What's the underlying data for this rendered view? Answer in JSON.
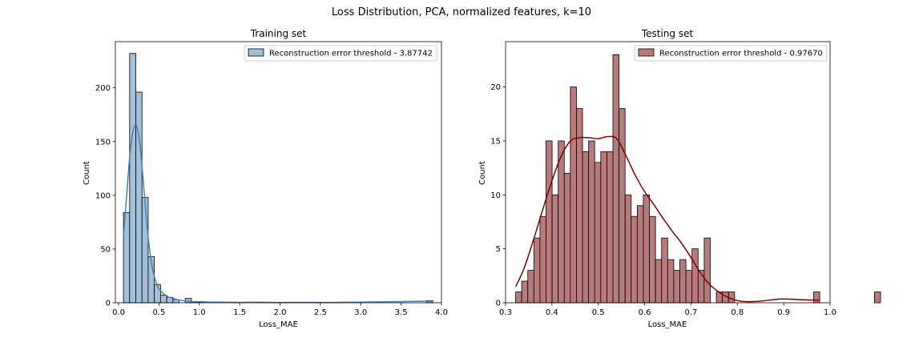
{
  "figure": {
    "title": "Loss Distribution, PCA, normalized features, k=10"
  },
  "chart_data": [
    {
      "type": "bar",
      "subtype": "histogram",
      "title": "Training set",
      "xlabel": "Loss_MAE",
      "ylabel": "Count",
      "xlim": [
        -0.04,
        4.0
      ],
      "ylim": [
        0,
        243
      ],
      "xticks": [
        "0.0",
        "0.5",
        "1.0",
        "1.5",
        "2.0",
        "2.5",
        "3.0",
        "3.5",
        "4.0"
      ],
      "yticks": [
        "0",
        "50",
        "100",
        "150",
        "200"
      ],
      "legend": {
        "label": "Reconstruction error threshold - 3.87742",
        "placement": "top-right"
      },
      "colors": {
        "fill": "#a4bfd8",
        "edge": "#000000",
        "kde": "#4a7fb0"
      },
      "bin_start": 0.06,
      "bin_width": 0.0766,
      "counts": [
        84,
        232,
        196,
        98,
        43,
        17,
        7,
        5,
        3,
        0,
        4,
        1,
        1,
        0,
        0,
        0,
        0,
        0,
        0,
        0,
        0,
        0,
        0,
        0,
        0,
        0,
        0,
        0,
        0,
        0,
        0,
        0,
        0,
        0,
        0,
        0,
        0,
        0,
        0,
        0,
        0,
        0,
        0,
        0,
        0,
        0,
        0,
        0,
        0,
        2
      ],
      "kde": {
        "x": [
          0.06,
          0.1,
          0.14,
          0.18,
          0.22,
          0.26,
          0.3,
          0.34,
          0.38,
          0.42,
          0.46,
          0.5,
          0.55,
          0.6,
          0.7,
          0.8,
          0.9,
          1.0,
          1.2,
          1.5,
          1.8,
          2.0,
          2.3,
          2.6,
          3.0,
          3.3,
          3.6,
          3.88
        ],
        "y": [
          62,
          100,
          138,
          160,
          165,
          150,
          118,
          82,
          52,
          32,
          20,
          13,
          9,
          6,
          3.5,
          2,
          1.2,
          1,
          0.6,
          0.4,
          0.5,
          0.3,
          0.4,
          0.3,
          0.6,
          0.9,
          1.2,
          1.5
        ]
      }
    },
    {
      "type": "bar",
      "subtype": "histogram",
      "title": "Testing set",
      "xlabel": "Loss_MAE",
      "ylabel": "Count",
      "xlim": [
        0.3,
        1.0
      ],
      "ylim": [
        0,
        24.2
      ],
      "xticks": [
        "0.3",
        "0.4",
        "0.5",
        "0.6",
        "0.7",
        "0.8",
        "0.9",
        "1.0"
      ],
      "yticks": [
        "0",
        "5",
        "10",
        "15",
        "20"
      ],
      "legend": {
        "label": "Reconstruction error threshold - 0.97670",
        "placement": "top-right"
      },
      "colors": {
        "fill": "#b77b7b",
        "edge": "#000000",
        "kde": "#800000"
      },
      "bin_start": 0.3217,
      "bin_width": 0.01312,
      "counts": [
        1,
        2,
        3,
        6,
        8,
        15,
        10,
        15,
        12,
        20,
        18,
        14,
        15,
        13,
        14,
        14,
        23,
        18,
        10,
        8,
        9,
        10,
        8,
        4,
        6,
        4,
        3,
        4,
        3,
        5,
        3,
        6,
        0,
        1,
        1,
        1,
        0,
        0,
        0,
        0,
        0,
        0,
        0,
        0,
        0,
        0,
        0,
        0,
        0,
        1,
        0,
        0,
        0,
        0,
        0,
        0,
        0,
        0,
        0,
        1
      ],
      "kde": {
        "x": [
          0.322,
          0.34,
          0.36,
          0.38,
          0.4,
          0.42,
          0.44,
          0.46,
          0.48,
          0.5,
          0.52,
          0.54,
          0.56,
          0.58,
          0.6,
          0.62,
          0.64,
          0.66,
          0.68,
          0.7,
          0.72,
          0.74,
          0.76,
          0.78,
          0.8,
          0.82,
          0.85,
          0.88,
          0.9,
          0.93,
          0.96,
          0.977
        ],
        "y": [
          1.5,
          3.2,
          5.8,
          8.6,
          11.3,
          13.6,
          15,
          15.3,
          15.3,
          15.2,
          15.4,
          15.2,
          13.6,
          11.8,
          10.3,
          9.1,
          7.8,
          6.6,
          5.5,
          4.2,
          2.8,
          1.7,
          1,
          0.5,
          0.2,
          0.1,
          0.15,
          0.3,
          0.35,
          0.3,
          0.25,
          0.25
        ]
      }
    }
  ]
}
